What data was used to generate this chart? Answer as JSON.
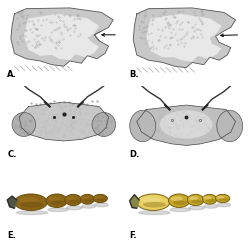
{
  "background_color": "#ffffff",
  "panel_labels": [
    "A.",
    "B.",
    "C.",
    "D.",
    "E.",
    "F."
  ],
  "panel_label_color": "#000000",
  "panel_label_fontsize": 6,
  "mandible_body_color": "#c8c8c8",
  "mandible_inner_color": "#e8e8e8",
  "mandible_dark": "#555555",
  "mandible_shadow": "#999999",
  "head_body_color": "#c0c0c0",
  "head_eye_color": "#a0a0a0",
  "head_dark": "#444444",
  "tarsus_E_dark": "#6b4c0a",
  "tarsus_E_mid": "#8B6518",
  "tarsus_E_light": "#a07820",
  "tarsus_F_dark": "#7a6010",
  "tarsus_F_mid": "#c8a828",
  "tarsus_F_light": "#e8d060",
  "hatch_color": "#aaaaaa",
  "arrow_color": "#000000"
}
